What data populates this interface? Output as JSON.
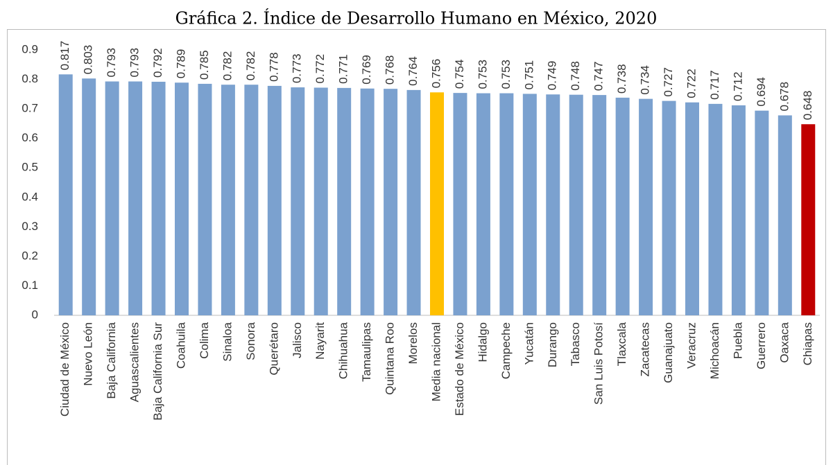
{
  "chart_data": {
    "type": "bar",
    "title": "Gráfica 2. Índice de Desarrollo Humano en México, 2020",
    "categories": [
      "Ciudad de México",
      "Nuevo León",
      "Baja California",
      "Aguascalientes",
      "Baja California Sur",
      "Coahuila",
      "Colima",
      "Sinaloa",
      "Sonora",
      "Querétaro",
      "Jalisco",
      "Nayarit",
      "Chihuahua",
      "Tamaulipas",
      "Quintana Roo",
      "Morelos",
      "Media nacional",
      "Estado de México",
      "Hidalgo",
      "Campeche",
      "Yucatán",
      "Durango",
      "Tabasco",
      "San Luis Potosí",
      "Tlaxcala",
      "Zacatecas",
      "Guanajuato",
      "Veracruz",
      "Michoacán",
      "Puebla",
      "Guerrero",
      "Oaxaca",
      "Chiapas"
    ],
    "values": [
      0.817,
      0.803,
      0.793,
      0.793,
      0.792,
      0.789,
      0.785,
      0.782,
      0.782,
      0.778,
      0.773,
      0.772,
      0.771,
      0.769,
      0.768,
      0.764,
      0.756,
      0.754,
      0.753,
      0.753,
      0.751,
      0.749,
      0.748,
      0.747,
      0.738,
      0.734,
      0.727,
      0.722,
      0.717,
      0.712,
      0.694,
      0.678,
      0.648
    ],
    "colors": [
      "#7ba1cf",
      "#7ba1cf",
      "#7ba1cf",
      "#7ba1cf",
      "#7ba1cf",
      "#7ba1cf",
      "#7ba1cf",
      "#7ba1cf",
      "#7ba1cf",
      "#7ba1cf",
      "#7ba1cf",
      "#7ba1cf",
      "#7ba1cf",
      "#7ba1cf",
      "#7ba1cf",
      "#7ba1cf",
      "#ffc000",
      "#7ba1cf",
      "#7ba1cf",
      "#7ba1cf",
      "#7ba1cf",
      "#7ba1cf",
      "#7ba1cf",
      "#7ba1cf",
      "#7ba1cf",
      "#7ba1cf",
      "#7ba1cf",
      "#7ba1cf",
      "#7ba1cf",
      "#7ba1cf",
      "#7ba1cf",
      "#7ba1cf",
      "#c00000"
    ],
    "ylim": [
      0,
      0.9
    ],
    "yticks": [
      0,
      0.1,
      0.2,
      0.3,
      0.4,
      0.5,
      0.6,
      0.7,
      0.8,
      0.9
    ],
    "grid": false
  }
}
